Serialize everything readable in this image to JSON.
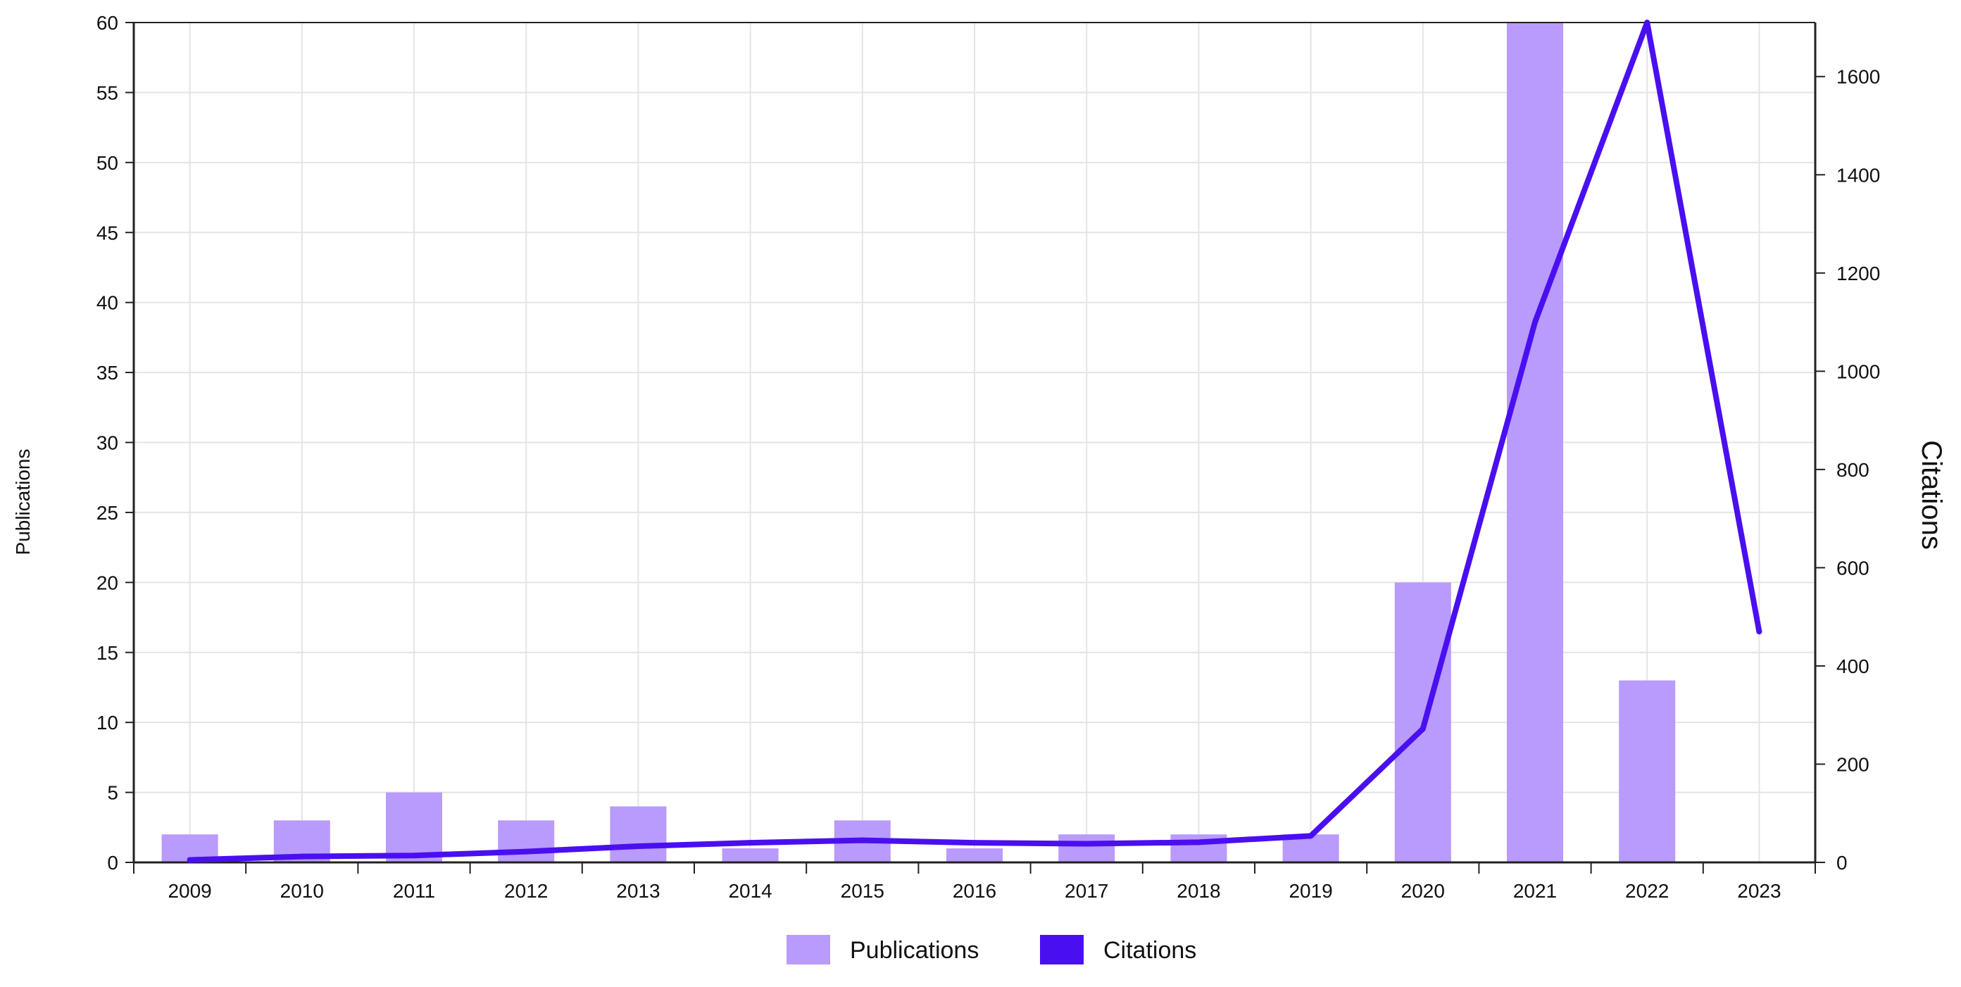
{
  "chart_data": {
    "type": "bar",
    "categories": [
      "2009",
      "2010",
      "2011",
      "2012",
      "2013",
      "2014",
      "2015",
      "2016",
      "2017",
      "2018",
      "2019",
      "2020",
      "2021",
      "2022",
      "2023"
    ],
    "series": [
      {
        "name": "Publications",
        "type": "bar",
        "axis": "left",
        "color": "#b89bfd",
        "values": [
          2,
          3,
          5,
          3,
          4,
          1,
          3,
          1,
          2,
          2,
          2,
          20,
          60,
          13,
          0
        ]
      },
      {
        "name": "Citations",
        "type": "line",
        "axis": "right",
        "color": "#4a0ff0",
        "values": [
          5,
          12,
          14,
          22,
          33,
          40,
          45,
          40,
          38,
          41,
          54,
          272,
          1100,
          1710,
          470
        ]
      }
    ],
    "y_left": {
      "label": "Publications",
      "min": 0,
      "max": 60,
      "ticks": [
        "0",
        "5",
        "10",
        "15",
        "20",
        "25",
        "30",
        "35",
        "40",
        "45",
        "50",
        "55",
        "60"
      ]
    },
    "y_right": {
      "label": "Citations",
      "min": 0,
      "max": 1710,
      "ticks": [
        "0",
        "200",
        "400",
        "600",
        "800",
        "1000",
        "1200",
        "1400",
        "1600"
      ]
    },
    "grid": true,
    "legend_position": "bottom-center"
  }
}
